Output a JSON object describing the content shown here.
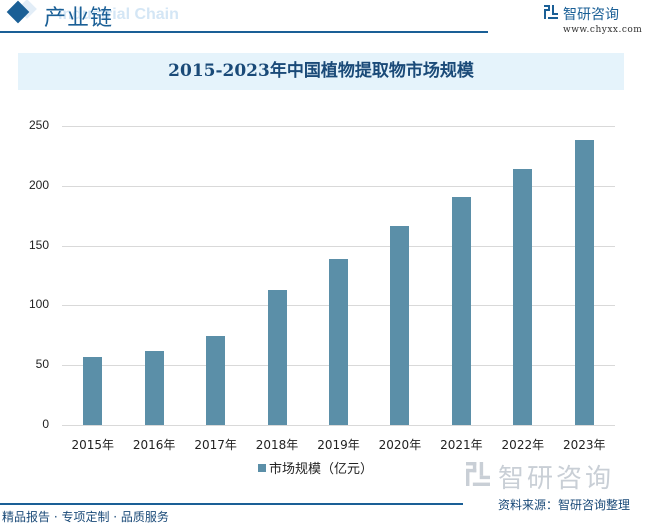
{
  "header": {
    "section_title": "产业链",
    "section_bg_text": "Industrial Chain",
    "brand_name": "智研咨询",
    "brand_url": "www.chyxx.com"
  },
  "chart_title": "2015-2023年中国植物提取物市场规模",
  "chart_data": {
    "type": "bar",
    "title": "2015-2023年中国植物提取物市场规模",
    "categories": [
      "2015年",
      "2016年",
      "2017年",
      "2018年",
      "2019年",
      "2020年",
      "2021年",
      "2022年",
      "2023年"
    ],
    "series": [
      {
        "name": "市场规模（亿元）",
        "color": "#5b8fa8",
        "values": [
          57,
          62,
          74.5,
          113,
          139,
          166,
          191,
          214,
          238
        ]
      }
    ],
    "xlabel": "",
    "ylabel": "",
    "ylim": [
      0,
      250
    ],
    "yticks": [
      0,
      50,
      100,
      150,
      200,
      250
    ],
    "grid": true,
    "legend_position": "bottom"
  },
  "y_ticks": [
    "0",
    "50",
    "100",
    "150",
    "200",
    "250"
  ],
  "x_labels": [
    "2015年",
    "2016年",
    "2017年",
    "2018年",
    "2019年",
    "2020年",
    "2021年",
    "2022年",
    "2023年"
  ],
  "legend": {
    "label": "市场规模（亿元）"
  },
  "footer": {
    "slogan": "精品报告 · 专项定制 · 品质服务",
    "source": "资料来源：智研咨询整理",
    "watermark_brand": "智研咨询"
  },
  "colors": {
    "brand": "#1a5f96",
    "bar": "#5b8fa8",
    "title_band": "#e5f3fb"
  }
}
